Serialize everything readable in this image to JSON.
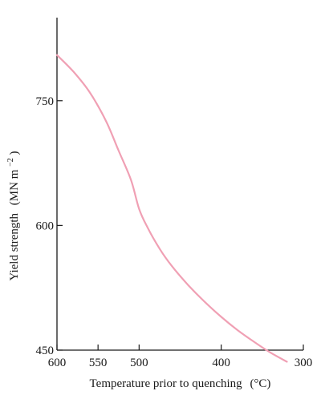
{
  "chart_data": {
    "type": "line",
    "xlabel": "Temperature prior to quenching",
    "xlabel_unit": "(°C)",
    "ylabel": "Yield strength",
    "ylabel_unit_base": "(MN m",
    "ylabel_unit_exp": "−2",
    "ylabel_unit_close": ")",
    "xlim": [
      600,
      300
    ],
    "ylim": [
      450,
      850
    ],
    "x_ticks": [
      600,
      550,
      500,
      400,
      300
    ],
    "y_ticks": [
      450,
      600,
      750
    ],
    "grid": false,
    "series": [
      {
        "color": "#f0a0b4",
        "x": [
          600,
          580,
          560,
          540,
          525,
          510,
          500,
          490,
          475,
          460,
          440,
          420,
          400,
          380,
          360,
          340,
          320
        ],
        "y": [
          805,
          785,
          760,
          725,
          690,
          655,
          620,
          598,
          572,
          551,
          528,
          508,
          490,
          474,
          460,
          447,
          436
        ]
      }
    ]
  }
}
